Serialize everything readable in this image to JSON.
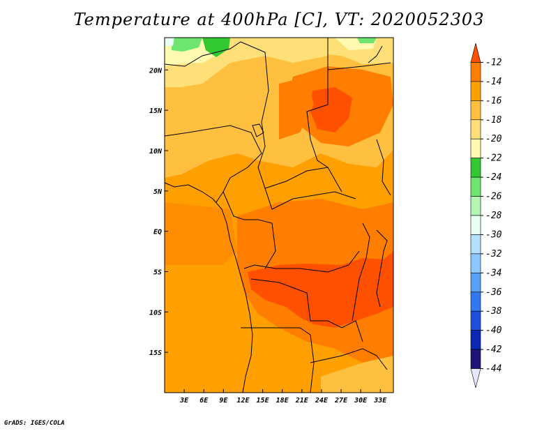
{
  "title": "Temperature at 400hPa [C], VT: 2020052303",
  "footer": "GrADS: IGES/COLA",
  "map": {
    "lon_range": [
      0,
      35
    ],
    "lat_range": [
      -20,
      24
    ],
    "x_ticks": [
      "3E",
      "6E",
      "9E",
      "12E",
      "15E",
      "18E",
      "21E",
      "24E",
      "27E",
      "30E",
      "33E"
    ],
    "x_tick_values": [
      3,
      6,
      9,
      12,
      15,
      18,
      21,
      24,
      27,
      30,
      33
    ],
    "y_ticks": [
      "20N",
      "15N",
      "10N",
      "5N",
      "EQ",
      "5S",
      "10S",
      "15S"
    ],
    "y_tick_values": [
      20,
      15,
      10,
      5,
      0,
      -5,
      -10,
      -15
    ]
  },
  "colorbar": {
    "labels": [
      "-12",
      "-14",
      "-16",
      "-18",
      "-20",
      "-22",
      "-24",
      "-26",
      "-28",
      "-30",
      "-32",
      "-34",
      "-36",
      "-38",
      "-40",
      "-42",
      "-44"
    ],
    "colors": [
      "#ff5000",
      "#ff7e00",
      "#ffa000",
      "#ffc040",
      "#ffe078",
      "#fffab0",
      "#32c832",
      "#6ee66e",
      "#b4f5b4",
      "#e6fff0",
      "#b4e0ff",
      "#8cc8ff",
      "#5aa0f5",
      "#3278f0",
      "#1e50dc",
      "#0a28b4",
      "#1e1478",
      "#e6e6ff"
    ]
  }
}
